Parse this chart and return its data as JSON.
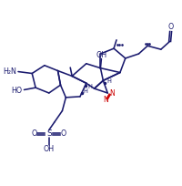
{
  "bg": "#ffffff",
  "lc": "#1a1a6e",
  "rc": "#cc0000",
  "lw": 1.15,
  "fs": 6.0,
  "figsize": [
    2.0,
    2.04
  ],
  "dpi": 100,
  "xlim": [
    0,
    10
  ],
  "ylim": [
    0,
    10.2
  ]
}
